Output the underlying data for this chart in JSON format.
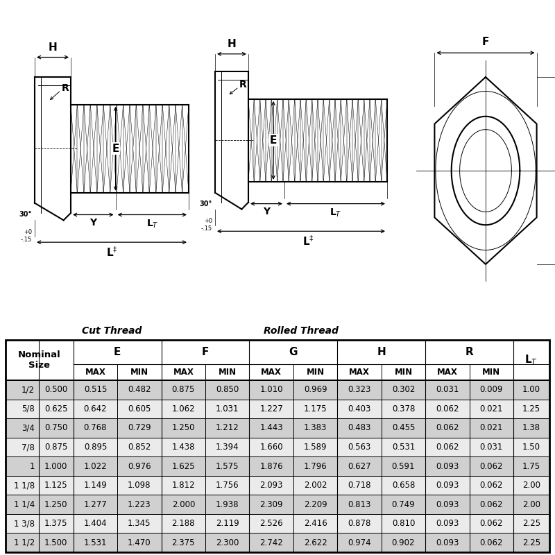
{
  "table_data": {
    "rows": [
      [
        "1/2",
        "0.500",
        "0.515",
        "0.482",
        "0.875",
        "0.850",
        "1.010",
        "0.969",
        "0.323",
        "0.302",
        "0.031",
        "0.009",
        "1.00"
      ],
      [
        "5/8",
        "0.625",
        "0.642",
        "0.605",
        "1.062",
        "1.031",
        "1.227",
        "1.175",
        "0.403",
        "0.378",
        "0.062",
        "0.021",
        "1.25"
      ],
      [
        "3/4",
        "0.750",
        "0.768",
        "0.729",
        "1.250",
        "1.212",
        "1.443",
        "1.383",
        "0.483",
        "0.455",
        "0.062",
        "0.021",
        "1.38"
      ],
      [
        "7/8",
        "0.875",
        "0.895",
        "0.852",
        "1.438",
        "1.394",
        "1.660",
        "1.589",
        "0.563",
        "0.531",
        "0.062",
        "0.031",
        "1.50"
      ],
      [
        "1",
        "1.000",
        "1.022",
        "0.976",
        "1.625",
        "1.575",
        "1.876",
        "1.796",
        "0.627",
        "0.591",
        "0.093",
        "0.062",
        "1.75"
      ],
      [
        "1 1/8",
        "1.125",
        "1.149",
        "1.098",
        "1.812",
        "1.756",
        "2.093",
        "2.002",
        "0.718",
        "0.658",
        "0.093",
        "0.062",
        "2.00"
      ],
      [
        "1 1/4",
        "1.250",
        "1.277",
        "1.223",
        "2.000",
        "1.938",
        "2.309",
        "2.209",
        "0.813",
        "0.749",
        "0.093",
        "0.062",
        "2.00"
      ],
      [
        "1 3/8",
        "1.375",
        "1.404",
        "1.345",
        "2.188",
        "2.119",
        "2.526",
        "2.416",
        "0.878",
        "0.810",
        "0.093",
        "0.062",
        "2.25"
      ],
      [
        "1 1/2",
        "1.500",
        "1.531",
        "1.470",
        "2.375",
        "2.300",
        "2.742",
        "2.622",
        "0.974",
        "0.902",
        "0.093",
        "0.062",
        "2.25"
      ]
    ],
    "odd_row_bg": "#d0d0d0",
    "even_row_bg": "#ebebeb",
    "header_bg": "#ffffff"
  },
  "bg_color": "#ffffff",
  "cut_thread_label": "Cut Thread",
  "rolled_thread_label": "Rolled Thread"
}
